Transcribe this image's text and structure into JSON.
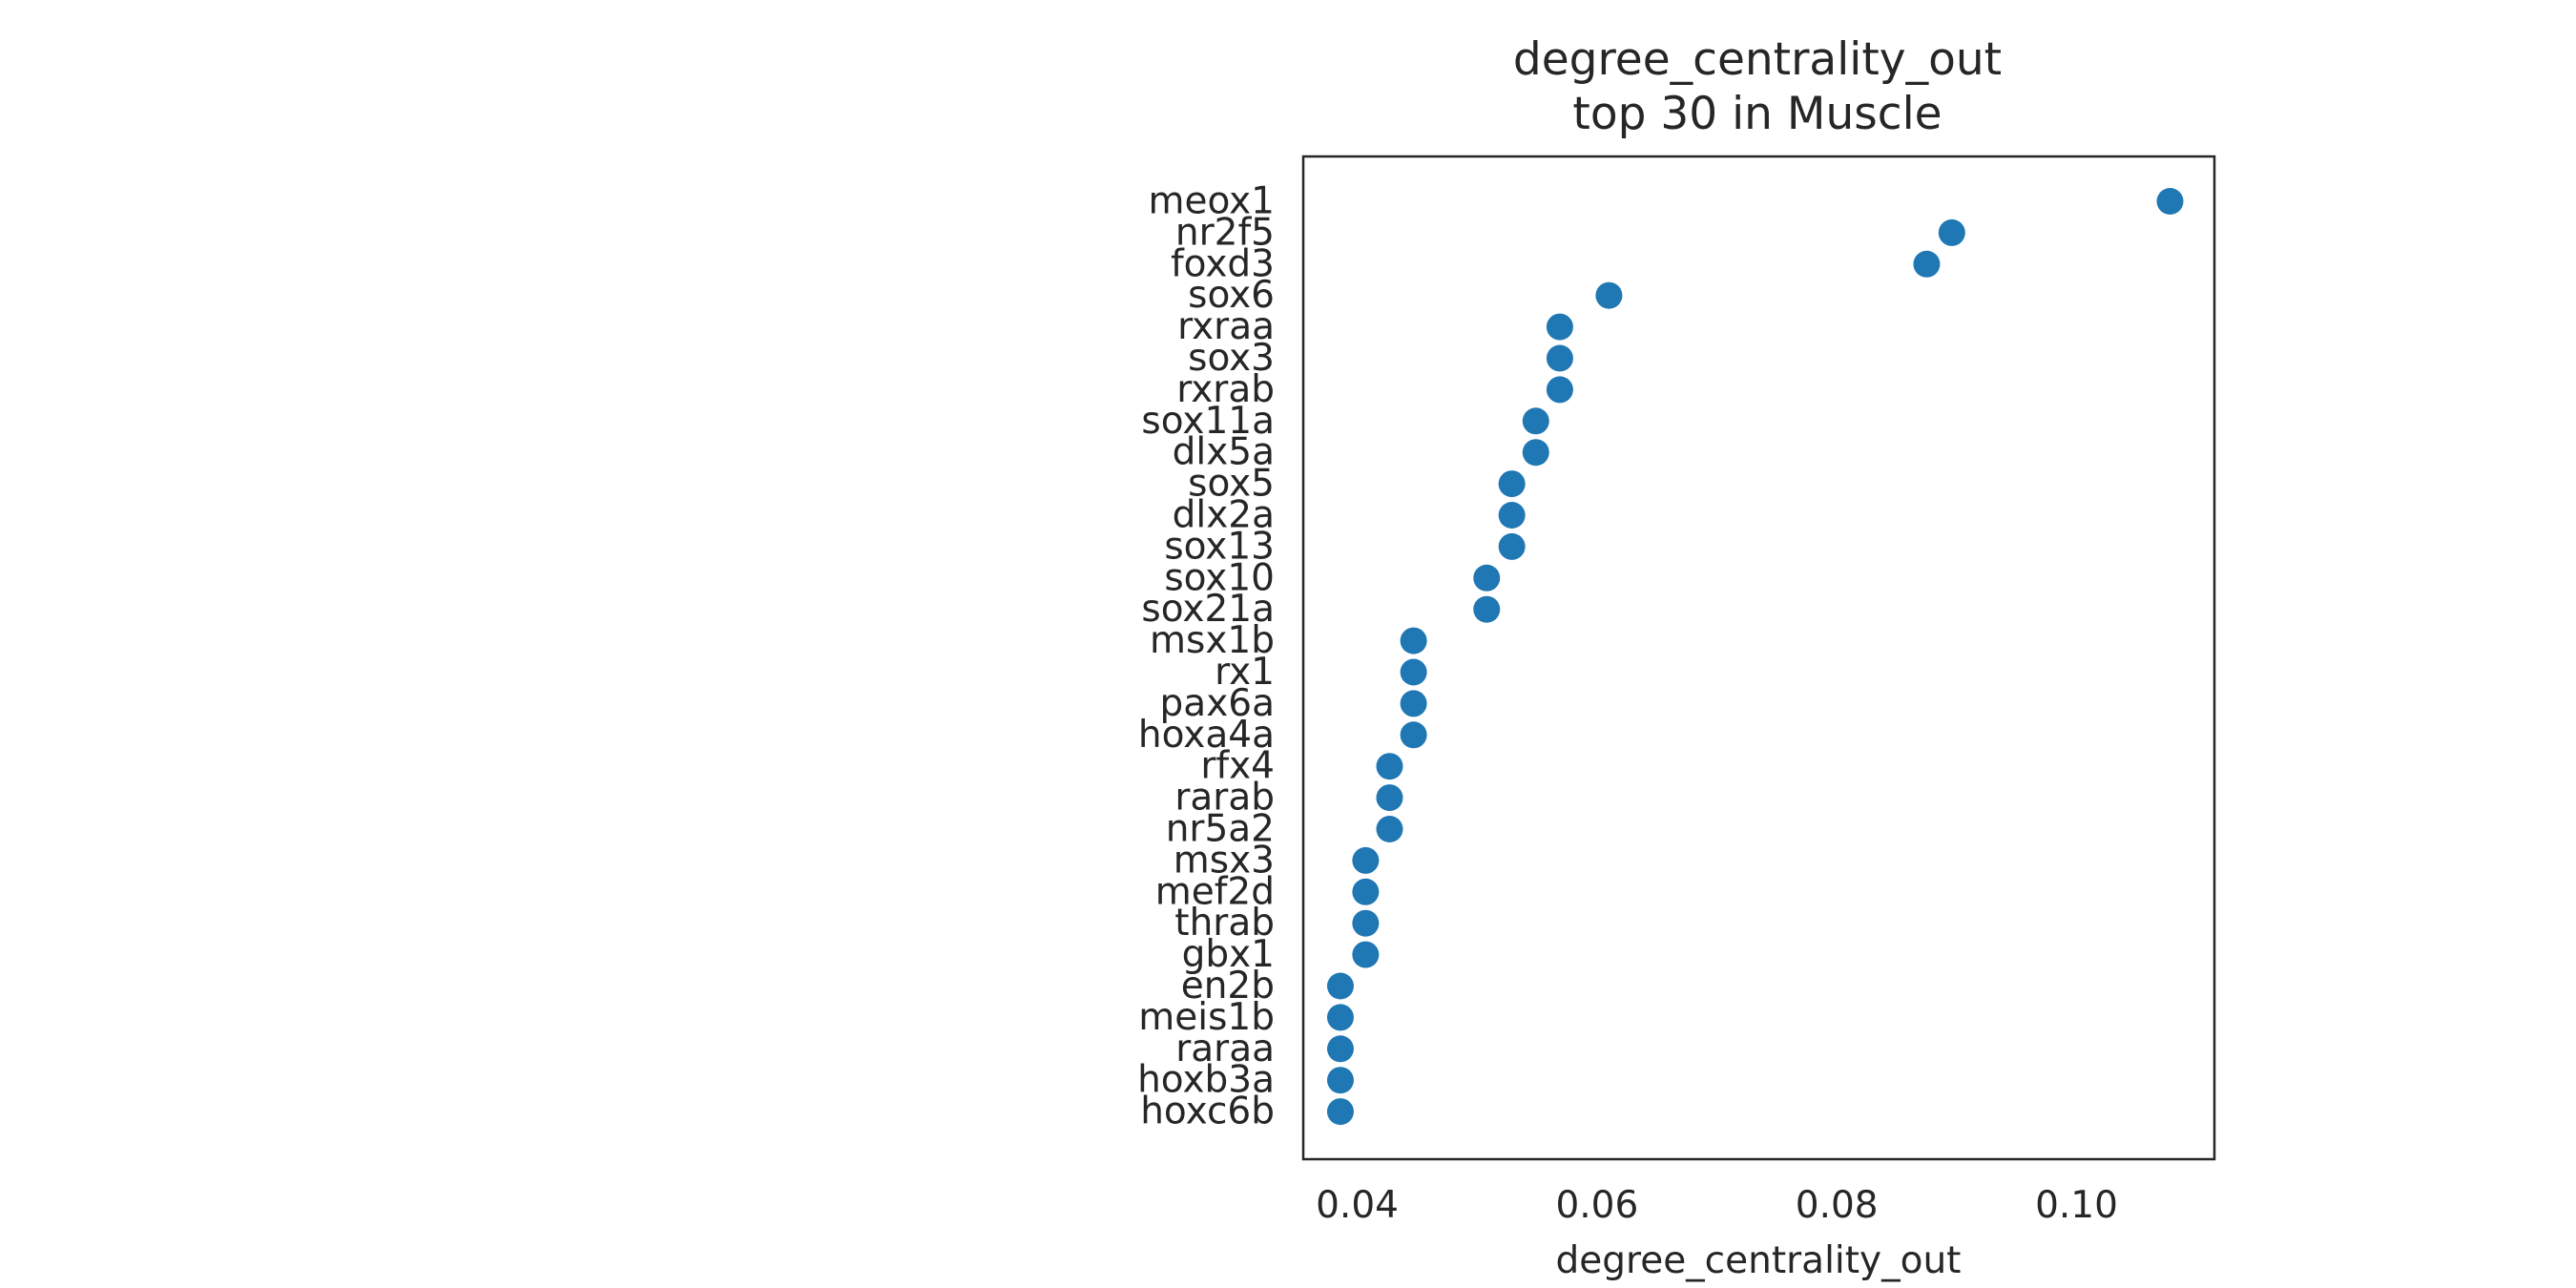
{
  "chart_data": {
    "type": "scatter",
    "title": "degree_centrality_out",
    "subtitle": "top 30 in Muscle",
    "xlabel": "degree_centrality_out",
    "ylabel": "",
    "xlim": [
      0.0355,
      0.1115
    ],
    "xticks": [
      0.04,
      0.06,
      0.08,
      0.1
    ],
    "xtick_labels": [
      "0.04",
      "0.06",
      "0.08",
      "0.10"
    ],
    "grid": false,
    "legend": "none",
    "marker_color": "#1f77b4",
    "frame_color": "#262626",
    "categories": [
      "meox1",
      "nr2f5",
      "foxd3",
      "sox6",
      "rxraa",
      "sox3",
      "rxrab",
      "sox11a",
      "dlx5a",
      "sox5",
      "dlx2a",
      "sox13",
      "sox10",
      "sox21a",
      "msx1b",
      "rx1",
      "pax6a",
      "hoxa4a",
      "rfx4",
      "rarab",
      "nr5a2",
      "msx3",
      "mef2d",
      "thrab",
      "gbx1",
      "en2b",
      "meis1b",
      "raraa",
      "hoxb3a",
      "hoxc6b"
    ],
    "values": [
      0.1078,
      0.0896,
      0.0875,
      0.061,
      0.0569,
      0.0569,
      0.0569,
      0.0549,
      0.0549,
      0.0529,
      0.0529,
      0.0529,
      0.0508,
      0.0508,
      0.0447,
      0.0447,
      0.0447,
      0.0447,
      0.0427,
      0.0427,
      0.0427,
      0.0407,
      0.0407,
      0.0407,
      0.0407,
      0.0386,
      0.0386,
      0.0386,
      0.0386,
      0.0386
    ]
  }
}
